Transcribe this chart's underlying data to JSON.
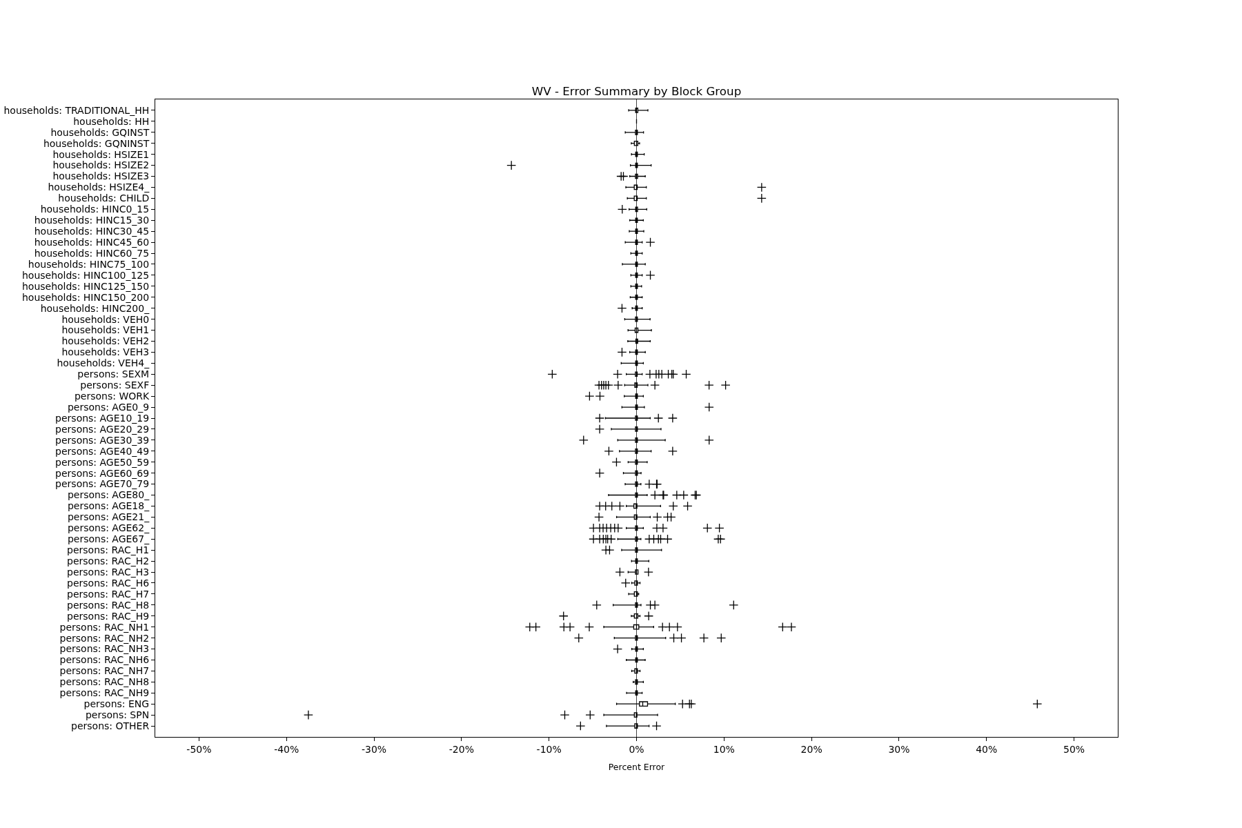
{
  "chart_data": {
    "type": "box",
    "title": "WV - Error Summary by Block Group",
    "xlabel": "Percent Error",
    "orientation": "horizontal",
    "marker": "cross",
    "categories": [
      "households: TRADITIONAL_HH",
      "households: HH",
      "households: GQINST",
      "households: GQNINST",
      "households: HSIZE1",
      "households: HSIZE2",
      "households: HSIZE3",
      "households: HSIZE4_",
      "households: CHILD",
      "households: HINC0_15",
      "households: HINC15_30",
      "households: HINC30_45",
      "households: HINC45_60",
      "households: HINC60_75",
      "households: HINC75_100",
      "households: HINC100_125",
      "households: HINC125_150",
      "households: HINC150_200",
      "households: HINC200_",
      "households: VEH0",
      "households: VEH1",
      "households: VEH2",
      "households: VEH3",
      "households: VEH4_",
      "persons: SEXM",
      "persons: SEXF",
      "persons: WORK",
      "persons: AGE0_9",
      "persons: AGE10_19",
      "persons: AGE20_29",
      "persons: AGE30_39",
      "persons: AGE40_49",
      "persons: AGE50_59",
      "persons: AGE60_69",
      "persons: AGE70_79",
      "persons: AGE80_",
      "persons: AGE18_",
      "persons: AGE21_",
      "persons: AGE62_",
      "persons: AGE67_",
      "persons: RAC_H1",
      "persons: RAC_H2",
      "persons: RAC_H3",
      "persons: RAC_H6",
      "persons: RAC_H7",
      "persons: RAC_H8",
      "persons: RAC_H9",
      "persons: RAC_NH1",
      "persons: RAC_NH2",
      "persons: RAC_NH3",
      "persons: RAC_NH6",
      "persons: RAC_NH7",
      "persons: RAC_NH8",
      "persons: RAC_NH9",
      "persons: ENG",
      "persons: SPN",
      "persons: OTHER"
    ],
    "series": [
      {
        "color": "#000000",
        "boxes": [
          {
            "low": -0.9,
            "q1": -0.1,
            "median": 0,
            "q3": 0.15,
            "high": 1.3
          },
          {
            "low": 0,
            "q1": 0,
            "median": 0,
            "q3": 0,
            "high": 0
          },
          {
            "low": -1.29,
            "q1": -0.12,
            "median": 0,
            "q3": 0.1,
            "high": 0.8
          },
          {
            "low": -0.6,
            "q1": -0.25,
            "median": 0,
            "q3": 0.15,
            "high": 0.35
          },
          {
            "low": -0.58,
            "q1": -0.1,
            "median": 0,
            "q3": 0.1,
            "high": 0.88
          },
          {
            "low": -0.7,
            "q1": -0.1,
            "median": 0,
            "q3": 0.1,
            "high": 1.67,
            "outliers": [
              -14.3
            ]
          },
          {
            "low": -0.78,
            "q1": -0.12,
            "median": 0,
            "q3": 0.12,
            "high": 1.0,
            "outliers": [
              -1.76,
              -1.5
            ]
          },
          {
            "low": -1.22,
            "q1": -0.26,
            "median": 0,
            "q3": 0.08,
            "high": 1.12,
            "outliers": [
              14.3
            ]
          },
          {
            "low": -1.05,
            "q1": -0.26,
            "median": 0,
            "q3": 0.08,
            "high": 1.12,
            "outliers": [
              14.3
            ]
          },
          {
            "low": -0.85,
            "q1": -0.1,
            "median": 0,
            "q3": 0.12,
            "high": 1.17,
            "outliers": [
              -1.63
            ]
          },
          {
            "low": -0.78,
            "q1": -0.1,
            "median": 0,
            "q3": 0.1,
            "high": 0.78
          },
          {
            "low": -0.83,
            "q1": -0.1,
            "median": 0,
            "q3": 0.1,
            "high": 0.83
          },
          {
            "low": -1.29,
            "q1": -0.1,
            "median": 0,
            "q3": 0.1,
            "high": 0.65,
            "outliers": [
              1.58
            ]
          },
          {
            "low": -0.65,
            "q1": -0.1,
            "median": 0,
            "q3": 0.1,
            "high": 0.65
          },
          {
            "low": -1.62,
            "q1": -0.1,
            "median": 0,
            "q3": 0.1,
            "high": 1.0
          },
          {
            "low": -0.65,
            "q1": -0.1,
            "median": 0,
            "q3": 0.1,
            "high": 0.65,
            "outliers": [
              1.58
            ]
          },
          {
            "low": -0.65,
            "q1": -0.1,
            "median": 0,
            "q3": 0.1,
            "high": 0.58
          },
          {
            "low": -0.72,
            "q1": -0.1,
            "median": 0,
            "q3": 0.1,
            "high": 0.65
          },
          {
            "low": -0.5,
            "q1": -0.1,
            "median": 0,
            "q3": 0.1,
            "high": 0.65,
            "outliers": [
              -1.66
            ]
          },
          {
            "low": -1.35,
            "q1": -0.12,
            "median": 0,
            "q3": 0.1,
            "high": 1.55
          },
          {
            "low": -0.97,
            "q1": -0.16,
            "median": 0,
            "q3": 0.16,
            "high": 1.7
          },
          {
            "low": -1.0,
            "q1": -0.08,
            "median": 0.05,
            "q3": 0.13,
            "high": 1.57
          },
          {
            "low": -0.78,
            "q1": -0.1,
            "median": 0,
            "q3": 0.1,
            "high": 1.0,
            "outliers": [
              -1.66
            ]
          },
          {
            "low": -1.75,
            "q1": -0.1,
            "median": 0,
            "q3": 0.1,
            "high": 0.78
          },
          {
            "low": -1.17,
            "q1": -0.13,
            "median": 0,
            "q3": 0.08,
            "high": 0.65,
            "outliers": [
              -9.63,
              -2.16,
              1.53,
              2.24,
              2.55,
              2.89,
              3.63,
              4.03,
              4.2,
              5.68
            ]
          },
          {
            "low": -1.36,
            "q1": -0.2,
            "median": -0.05,
            "q3": 0.08,
            "high": 1.3,
            "outliers": [
              -4.29,
              -4.0,
              -3.75,
              -3.5,
              -3.21,
              -2.1,
              2.1,
              8.29,
              10.18
            ]
          },
          {
            "low": -1.4,
            "q1": -0.1,
            "median": 0,
            "q3": 0.1,
            "high": 0.78,
            "outliers": [
              -5.37,
              -4.18
            ]
          },
          {
            "low": -1.67,
            "q1": -0.1,
            "median": 0,
            "q3": 0.1,
            "high": 0.9,
            "outliers": [
              8.3
            ]
          },
          {
            "low": -3.55,
            "q1": -0.12,
            "median": 0,
            "q3": 0.1,
            "high": 1.57,
            "outliers": [
              -4.21,
              2.5,
              4.13
            ]
          },
          {
            "low": -2.88,
            "q1": -0.12,
            "median": 0,
            "q3": 0.1,
            "high": 2.8,
            "outliers": [
              -4.21
            ]
          },
          {
            "low": -2.15,
            "q1": -0.12,
            "median": 0,
            "q3": 0.1,
            "high": 3.28,
            "outliers": [
              -6.05,
              8.3
            ]
          },
          {
            "low": -1.95,
            "q1": -0.12,
            "median": 0,
            "q3": 0.1,
            "high": 1.67,
            "outliers": [
              -3.16,
              4.13
            ]
          },
          {
            "low": -0.96,
            "q1": -0.12,
            "median": 0,
            "q3": 0.1,
            "high": 1.22,
            "outliers": [
              -2.29
            ]
          },
          {
            "low": -1.5,
            "q1": -0.12,
            "median": 0,
            "q3": 0.1,
            "high": 0.52,
            "outliers": [
              -4.21
            ]
          },
          {
            "low": -1.3,
            "q1": -0.12,
            "median": 0,
            "q3": 0.1,
            "high": 0.5,
            "outliers": [
              1.45,
              2.29,
              2.35
            ]
          },
          {
            "low": -3.2,
            "q1": -0.12,
            "median": 0,
            "q3": 0.1,
            "high": 1.22,
            "outliers": [
              2.1,
              3.03,
              3.1,
              4.6,
              5.39,
              6.7,
              6.84
            ]
          },
          {
            "low": -1.17,
            "q1": -0.3,
            "median": -0.05,
            "q3": 0.05,
            "high": 2.75,
            "outliers": [
              -4.21,
              -3.53,
              -2.82,
              -1.9,
              4.2,
              5.84
            ]
          },
          {
            "low": -2.28,
            "q1": -0.25,
            "median": -0.05,
            "q3": 0.05,
            "high": 1.57,
            "outliers": [
              -4.29,
              2.37,
              3.55,
              3.95
            ]
          },
          {
            "low": -1.17,
            "q1": -0.12,
            "median": 0,
            "q3": 0.1,
            "high": 0.78,
            "outliers": [
              -4.92,
              -4.21,
              -3.82,
              -3.42,
              -2.95,
              -2.5,
              -2.1,
              2.32,
              3.03,
              8.1,
              9.47
            ]
          },
          {
            "low": -2.15,
            "q1": -0.12,
            "median": 0,
            "q3": 0.1,
            "high": 0.5,
            "outliers": [
              -4.92,
              -4.21,
              -3.8,
              -3.5,
              -3.3,
              -2.9,
              1.45,
              1.97,
              2.5,
              2.76,
              3.55,
              9.34,
              9.6
            ]
          },
          {
            "low": -1.7,
            "q1": -0.12,
            "median": 0,
            "q3": 0.1,
            "high": 2.86,
            "outliers": [
              -3.5,
              -3.08
            ]
          },
          {
            "low": -0.57,
            "q1": -0.1,
            "median": 0,
            "q3": 0.1,
            "high": 1.41
          },
          {
            "low": -0.96,
            "q1": -0.12,
            "median": 0,
            "q3": 0.17,
            "high": 0.17,
            "outliers": [
              -1.9,
              1.37
            ]
          },
          {
            "low": -0.55,
            "q1": -0.2,
            "median": 0,
            "q3": 0.1,
            "high": 0.4,
            "outliers": [
              -1.24
            ]
          },
          {
            "low": -0.9,
            "q1": -0.25,
            "median": 0,
            "q3": 0.1,
            "high": 0.25
          },
          {
            "low": -2.67,
            "q1": -0.12,
            "median": 0,
            "q3": 0.1,
            "high": 0.51,
            "outliers": [
              -4.55,
              1.58,
              2.1,
              11.1
            ]
          },
          {
            "low": -0.6,
            "q1": -0.25,
            "median": 0,
            "q3": 0.15,
            "high": 0.4,
            "outliers": [
              -8.34,
              1.39
            ]
          },
          {
            "low": -3.74,
            "q1": -0.32,
            "median": 0,
            "q3": 0.26,
            "high": 1.96,
            "outliers": [
              -12.2,
              -11.5,
              -8.3,
              -7.6,
              -5.4,
              2.97,
              3.76,
              4.68,
              16.7,
              17.7
            ]
          },
          {
            "low": -2.54,
            "q1": -0.12,
            "median": 0,
            "q3": 0.1,
            "high": 3.33,
            "outliers": [
              -6.6,
              4.26,
              5.13,
              7.7,
              9.68
            ]
          },
          {
            "low": -0.54,
            "q1": -0.1,
            "median": 0,
            "q3": 0.1,
            "high": 0.78,
            "outliers": [
              -2.16
            ]
          },
          {
            "low": -1.17,
            "q1": -0.1,
            "median": 0,
            "q3": 0.1,
            "high": 0.99
          },
          {
            "low": -0.55,
            "q1": -0.2,
            "median": 0,
            "q3": 0.1,
            "high": 0.4
          },
          {
            "low": -0.38,
            "q1": -0.12,
            "median": 0,
            "q3": 0.1,
            "high": 0.78
          },
          {
            "low": -1.14,
            "q1": -0.1,
            "median": 0,
            "q3": 0.1,
            "high": 0.64
          },
          {
            "low": -2.28,
            "q1": 0.34,
            "median": 0.71,
            "q3": 1.26,
            "high": 4.43,
            "outliers": [
              5.26,
              6.05,
              6.26,
              45.8
            ]
          },
          {
            "low": -3.74,
            "q1": -0.25,
            "median": -0.03,
            "q3": 0.05,
            "high": 2.41,
            "outliers": [
              -37.5,
              -8.2,
              -5.3
            ]
          },
          {
            "low": -3.44,
            "q1": -0.2,
            "median": 0,
            "q3": 0.1,
            "high": 1.43,
            "outliers": [
              -6.4,
              2.29
            ]
          }
        ]
      }
    ],
    "xlim": [
      -55,
      55
    ],
    "xticks": [
      {
        "value": -50,
        "label": "-50%"
      },
      {
        "value": -40,
        "label": "-40%"
      },
      {
        "value": -30,
        "label": "-30%"
      },
      {
        "value": -20,
        "label": "-20%"
      },
      {
        "value": -10,
        "label": "-10%"
      },
      {
        "value": 0,
        "label": "0%"
      },
      {
        "value": 10,
        "label": "10%"
      },
      {
        "value": 20,
        "label": "20%"
      },
      {
        "value": 30,
        "label": "30%"
      },
      {
        "value": 40,
        "label": "40%"
      },
      {
        "value": 50,
        "label": "50%"
      }
    ],
    "ref_lines": [
      {
        "axis": "x",
        "value": 0,
        "color": "#444444"
      }
    ]
  }
}
